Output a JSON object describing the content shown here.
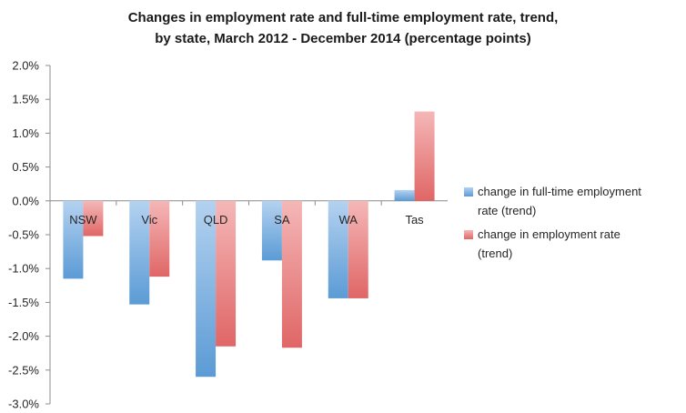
{
  "chart_data": {
    "type": "bar",
    "title_lines": [
      "Changes in employment rate and full-time employment rate, trend,",
      "by state, March 2012 - December 2014 (percentage points)"
    ],
    "categories": [
      "NSW",
      "Vic",
      "QLD",
      "SA",
      "WA",
      "Tas"
    ],
    "series": [
      {
        "name_lines": [
          "change in full-time employment",
          "rate (trend)"
        ],
        "values": [
          -1.15,
          -1.53,
          -2.6,
          -0.88,
          -1.44,
          0.16
        ],
        "color": "#5b9bd5",
        "color_light": "#b4d2f0"
      },
      {
        "name_lines": [
          "change in employment rate",
          "(trend)"
        ],
        "values": [
          -0.52,
          -1.12,
          -2.15,
          -2.17,
          -1.44,
          1.32
        ],
        "color": "#e06666",
        "color_light": "#f5b7b7"
      }
    ],
    "yticks": [
      "2.0%",
      "1.5%",
      "1.0%",
      "0.5%",
      "0.0%",
      "-0.5%",
      "-1.0%",
      "-1.5%",
      "-2.0%",
      "-2.5%",
      "-3.0%"
    ],
    "ylim": [
      -3.0,
      2.0
    ],
    "grid": false,
    "legend": "right"
  }
}
